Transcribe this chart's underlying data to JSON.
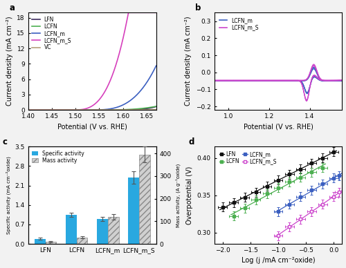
{
  "panel_a": {
    "title": "a",
    "xlabel": "Potential (V vs. RHE)",
    "ylabel": "Current density (mA cm⁻²)",
    "xlim": [
      1.4,
      1.67
    ],
    "ylim": [
      0,
      19
    ],
    "yticks": [
      0,
      3,
      6,
      9,
      12,
      15,
      18
    ],
    "lines": {
      "LFN": {
        "color": "#3d2b5e",
        "onset": 1.595,
        "scale": 2500,
        "exp": 3.2
      },
      "LCFN": {
        "color": "#4caf50",
        "onset": 1.555,
        "scale": 450,
        "exp": 3.0
      },
      "LCFN_m": {
        "color": "#3b5fc0",
        "onset": 1.535,
        "scale": 3500,
        "exp": 3.0
      },
      "LCFN_m_S": {
        "color": "#d63fbc",
        "onset": 1.495,
        "scale": 12000,
        "exp": 3.0
      },
      "VC": {
        "color": "#b5a07a",
        "onset": 1.59,
        "scale": 120,
        "exp": 3.0
      }
    },
    "legend_order": [
      "LFN",
      "LCFN",
      "LCFN_m",
      "LCFN_m_S",
      "VC"
    ]
  },
  "panel_b": {
    "title": "b",
    "xlabel": "Potential (V vs. RHE)",
    "ylabel": "Current density (mA cm⁻²)",
    "xlim": [
      0.93,
      1.56
    ],
    "ylim": [
      -0.22,
      0.35
    ],
    "yticks": [
      -0.2,
      -0.1,
      0.0,
      0.1,
      0.2,
      0.3
    ],
    "LCFN_m_color": "#3b5fc0",
    "LCFN_m_S_color": "#cc44cc"
  },
  "panel_c": {
    "title": "c",
    "ylabel_left": "Specific activity (mA cm⁻²oxide)",
    "ylabel_right": "Mass activity, (A g⁻¹oxide)",
    "categories": [
      "LFN",
      "LCFN",
      "LCFN_m",
      "LCFN_m_S"
    ],
    "specific_activity": [
      0.18,
      1.05,
      0.9,
      2.38
    ],
    "mass_activity": [
      10,
      28,
      120,
      395
    ],
    "specific_err": [
      0.04,
      0.08,
      0.07,
      0.22
    ],
    "mass_err": [
      3,
      5,
      12,
      35
    ],
    "ylim_left": [
      0,
      3.5
    ],
    "ylim_right": [
      0,
      430
    ],
    "yticks_left": [
      0.0,
      0.7,
      1.4,
      2.1,
      2.8,
      3.5
    ],
    "yticks_right": [
      0,
      100,
      200,
      300,
      400
    ],
    "bar_color_solid": "#29a8e0",
    "bar_color_hatch": "#d0d0d0",
    "bar_hatch": "////"
  },
  "panel_d": {
    "title": "d",
    "xlabel": "Log (j /mA cm⁻²oxide)",
    "ylabel": "Overpotential (V)",
    "xlim": [
      -2.15,
      0.15
    ],
    "ylim": [
      0.285,
      0.415
    ],
    "yticks": [
      0.3,
      0.35,
      0.4
    ],
    "lines": {
      "LFN": {
        "color": "#111111",
        "marker": "s",
        "mfc": "#111111",
        "x": [
          -2.0,
          -1.8,
          -1.6,
          -1.4,
          -1.2,
          -1.0,
          -0.8,
          -0.6,
          -0.4,
          -0.2,
          0.0
        ],
        "y": [
          0.334,
          0.34,
          0.347,
          0.354,
          0.362,
          0.37,
          0.378,
          0.385,
          0.393,
          0.4,
          0.408
        ]
      },
      "LCFN": {
        "color": "#4caf50",
        "marker": "s",
        "mfc": "#4caf50",
        "x": [
          -1.8,
          -1.6,
          -1.4,
          -1.2,
          -1.0,
          -0.8,
          -0.6,
          -0.4,
          -0.2
        ],
        "y": [
          0.322,
          0.333,
          0.344,
          0.352,
          0.36,
          0.368,
          0.374,
          0.381,
          0.387
        ]
      },
      "LCFN_m": {
        "color": "#3b5fc0",
        "marker": "s",
        "mfc": "#3b5fc0",
        "x": [
          -1.0,
          -0.8,
          -0.6,
          -0.4,
          -0.2,
          0.0,
          0.1
        ],
        "y": [
          0.328,
          0.338,
          0.348,
          0.357,
          0.365,
          0.373,
          0.376
        ]
      },
      "LCFN_m_S": {
        "color": "#cc44cc",
        "marker": "s",
        "mfc": "#ffffff",
        "x": [
          -1.0,
          -0.8,
          -0.6,
          -0.4,
          -0.2,
          0.0,
          0.1
        ],
        "y": [
          0.296,
          0.308,
          0.318,
          0.328,
          0.338,
          0.348,
          0.354
        ]
      }
    },
    "legend_order": [
      "LFN",
      "LCFN",
      "LCFN_m",
      "LCFN_m_S"
    ]
  },
  "figure_bg": "#f2f2f2",
  "axes_bg": "#ffffff",
  "font_size": 7.5,
  "label_font_size": 7,
  "tick_font_size": 6.5
}
